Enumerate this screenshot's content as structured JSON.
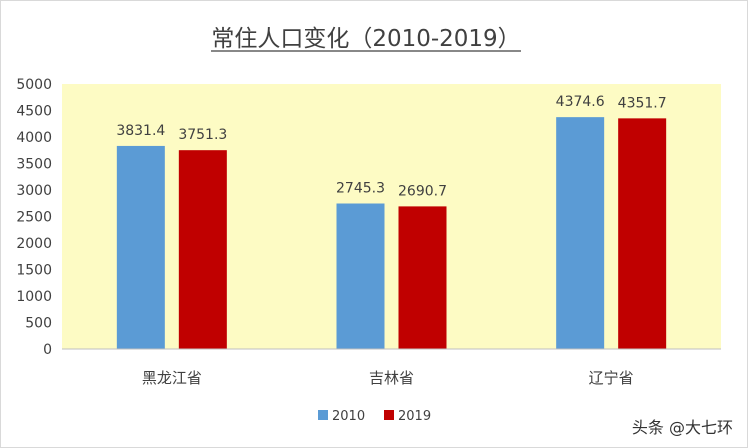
{
  "chart_data": {
    "type": "bar",
    "title": "常住人口变化（2010-2019）",
    "categories": [
      "黑龙江省",
      "吉林省",
      "辽宁省"
    ],
    "series": [
      {
        "name": "2010",
        "values": [
          3831.4,
          2745.3,
          4374.6
        ],
        "color": "#5b9bd5"
      },
      {
        "name": "2019",
        "values": [
          3751.3,
          2690.7,
          4351.7
        ],
        "color": "#c00000"
      }
    ],
    "ylim": [
      0,
      5000
    ],
    "yticks": [
      0,
      500,
      1000,
      1500,
      2000,
      2500,
      3000,
      3500,
      4000,
      4500,
      5000
    ],
    "grid": false,
    "legend_position": "bottom",
    "plot_background": "#fdfbc4"
  },
  "watermark": "头条 @大七环"
}
